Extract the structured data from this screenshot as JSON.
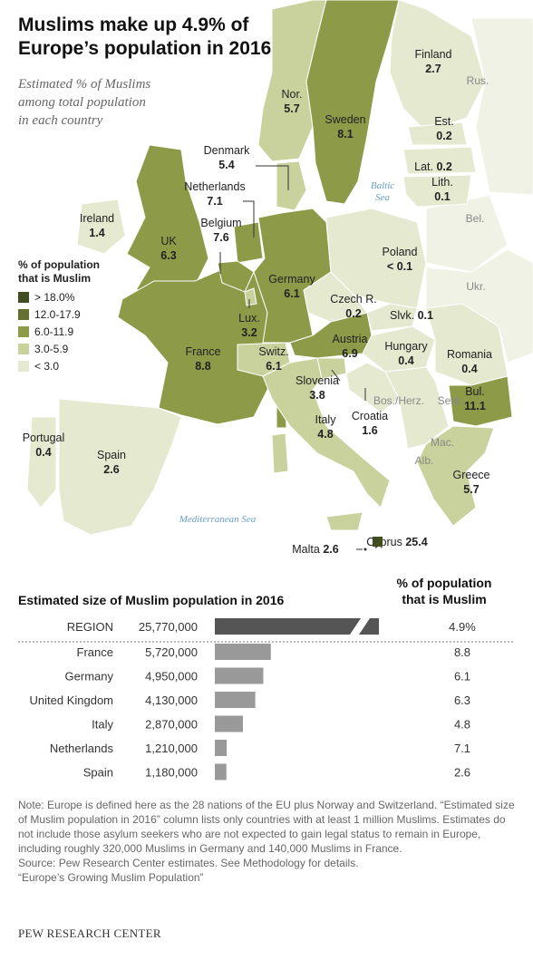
{
  "title_lines": [
    "Muslims make up 4.9% of",
    "Europe’s population in 2016"
  ],
  "subtitle_lines": [
    "Estimated % of Muslims",
    "among total population",
    "in each country"
  ],
  "legend": {
    "title_lines": [
      "% of population",
      "that is Muslim"
    ],
    "items": [
      {
        "label": "> 18.0%",
        "color": "#434d22"
      },
      {
        "label": "12.0-17.9",
        "color": "#646f30"
      },
      {
        "label": "6.0-11.9",
        "color": "#8d9a48"
      },
      {
        "label": "3.0-5.9",
        "color": "#c9d29c"
      },
      {
        "label": "< 3.0",
        "color": "#e5e9cf"
      }
    ]
  },
  "map": {
    "countries": [
      {
        "name": "Finland",
        "value": 2.7
      },
      {
        "name": "Nor.",
        "value": 5.7
      },
      {
        "name": "Sweden",
        "value": 8.1
      },
      {
        "name": "Est.",
        "value": 0.2
      },
      {
        "name": "Denmark",
        "value": 5.4
      },
      {
        "name": "Lat.",
        "value": 0.2
      },
      {
        "name": "Lith.",
        "value": 0.1
      },
      {
        "name": "Netherlands",
        "value": 7.1
      },
      {
        "name": "Ireland",
        "value": 1.4
      },
      {
        "name": "Belgium",
        "value": 7.6
      },
      {
        "name": "Poland",
        "value": "< 0.1"
      },
      {
        "name": "UK",
        "value": 6.3
      },
      {
        "name": "Germany",
        "value": 6.1
      },
      {
        "name": "Czech R.",
        "value": 0.2
      },
      {
        "name": "Lux.",
        "value": 3.2
      },
      {
        "name": "Slvk.",
        "value": 0.1
      },
      {
        "name": "Austria",
        "value": 6.9
      },
      {
        "name": "Hungary",
        "value": 0.4
      },
      {
        "name": "Romania",
        "value": 0.4
      },
      {
        "name": "France",
        "value": 8.8
      },
      {
        "name": "Switz.",
        "value": 6.1
      },
      {
        "name": "Slovenia",
        "value": 3.8
      },
      {
        "name": "Croatia",
        "value": 1.6
      },
      {
        "name": "Bul.",
        "value": 11.1
      },
      {
        "name": "Italy",
        "value": 4.8
      },
      {
        "name": "Portugal",
        "value": 0.4
      },
      {
        "name": "Spain",
        "value": 2.6
      },
      {
        "name": "Greece",
        "value": 5.7
      },
      {
        "name": "Cyprus",
        "value": 25.4
      },
      {
        "name": "Malta",
        "value": 2.6
      }
    ],
    "other_labels": [
      "Rus.",
      "Bel.",
      "Ukr.",
      "Serb.",
      "Bos./Herz.",
      "Mac.",
      "Alb."
    ],
    "seas": [
      [
        "Baltic",
        "Sea"
      ],
      [
        "Mediterranean Sea"
      ]
    ]
  },
  "chart_data": {
    "type": "bar",
    "title": "Estimated size of Muslim population in 2016",
    "share_header_lines": [
      "% of population",
      "that is Muslim"
    ],
    "region": {
      "label": "REGION",
      "value": 25770000,
      "value_label": "25,770,000",
      "share": 4.9,
      "share_label": "4.9%"
    },
    "categories": [
      "France",
      "Germany",
      "United Kingdom",
      "Italy",
      "Netherlands",
      "Spain"
    ],
    "values": [
      5720000,
      4950000,
      4130000,
      2870000,
      1210000,
      1180000
    ],
    "value_labels": [
      "5,720,000",
      "4,950,000",
      "4,130,000",
      "2,870,000",
      "1,210,000",
      "1,180,000"
    ],
    "shares": [
      8.8,
      6.1,
      6.3,
      4.8,
      7.1,
      2.6
    ],
    "color": "#999999",
    "region_color": "#555555"
  },
  "note": "Note: Europe is defined here as the 28 nations of the EU plus Norway and Switzerland. “Estimated size of Muslim population in 2016” column lists only countries with at least 1 million Muslims. Estimates do not include those asylum seekers who are not expected to gain legal status to remain in Europe, including roughly 320,000 Muslims in Germany and 140,000 Muslims in France.",
  "source": "Source: Pew Research Center estimates. See Methodology for details.",
  "report": "“Europe’s Growing Muslim Population”",
  "footer": "PEW RESEARCH CENTER"
}
